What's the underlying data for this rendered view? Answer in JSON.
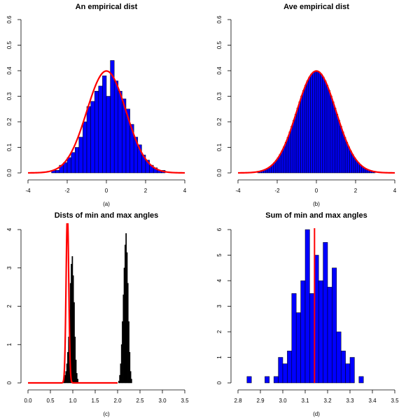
{
  "chart_data": [
    {
      "panel": "a",
      "type": "bar",
      "title": "An empirical dist",
      "subtitle": "(a)",
      "xlim": [
        -4,
        4
      ],
      "ylim": [
        0,
        0.6
      ],
      "xticks": [
        "-4",
        "-2",
        "0",
        "2",
        "4"
      ],
      "yticks": [
        "0.0",
        "0.1",
        "0.2",
        "0.3",
        "0.4",
        "0.5",
        "0.6"
      ],
      "bar_color": "#0000ff",
      "bin_width": 0.2,
      "bins_start": [
        -2.8,
        -2.6,
        -2.4,
        -2.2,
        -2.0,
        -1.8,
        -1.6,
        -1.4,
        -1.2,
        -1.0,
        -0.8,
        -0.6,
        -0.4,
        -0.2,
        0.0,
        0.2,
        0.4,
        0.6,
        0.8,
        1.0,
        1.2,
        1.4,
        1.6,
        1.8,
        2.0,
        2.2,
        2.4,
        2.6,
        2.8
      ],
      "values": [
        0.01,
        0.01,
        0.03,
        0.04,
        0.06,
        0.08,
        0.1,
        0.14,
        0.2,
        0.26,
        0.28,
        0.32,
        0.34,
        0.38,
        0.3,
        0.44,
        0.36,
        0.32,
        0.29,
        0.25,
        0.19,
        0.14,
        0.11,
        0.07,
        0.05,
        0.03,
        0.02,
        0.01,
        0.01
      ],
      "curve": {
        "type": "normal-density",
        "mean": 0,
        "sd": 1,
        "color": "#ff0000"
      }
    },
    {
      "panel": "b",
      "type": "bar",
      "title": "Ave empirical dist",
      "subtitle": "(b)",
      "xlim": [
        -4,
        4
      ],
      "ylim": [
        0,
        0.6
      ],
      "xticks": [
        "-4",
        "-2",
        "0",
        "2",
        "4"
      ],
      "yticks": [
        "0.0",
        "0.1",
        "0.2",
        "0.3",
        "0.4",
        "0.5",
        "0.6"
      ],
      "bar_color": "#0000ff",
      "bin_width": 0.1,
      "range": [
        -3.0,
        3.0
      ],
      "bars_follow": "normal-density",
      "curve": {
        "type": "normal-density",
        "mean": 0,
        "sd": 1,
        "color": "#ff0000"
      }
    },
    {
      "panel": "c",
      "type": "bar",
      "title": "Dists of min and max angles",
      "subtitle": "(c)",
      "xlim": [
        0,
        3.5
      ],
      "ylim": [
        0,
        4
      ],
      "xticks": [
        "0.0",
        "0.5",
        "1.0",
        "1.5",
        "2.0",
        "2.5",
        "3.0",
        "3.5"
      ],
      "yticks": [
        "0",
        "1",
        "2",
        "3",
        "4"
      ],
      "bar_color": "#000000",
      "bin_width": 0.02,
      "groups": [
        {
          "name": "min",
          "bins_start": [
            0.78,
            0.8,
            0.82,
            0.84,
            0.86,
            0.88,
            0.9,
            0.92,
            0.94,
            0.96,
            0.98,
            1.0,
            1.02,
            1.04,
            1.06,
            1.08,
            1.1
          ],
          "values": [
            0.05,
            0.15,
            0.2,
            0.3,
            0.5,
            0.8,
            1.2,
            1.9,
            2.6,
            3.1,
            3.3,
            2.8,
            2.1,
            1.2,
            0.6,
            0.25,
            0.1
          ]
        },
        {
          "name": "max",
          "bins_start": [
            2.02,
            2.04,
            2.06,
            2.08,
            2.1,
            2.12,
            2.14,
            2.16,
            2.18,
            2.2,
            2.22,
            2.24,
            2.26,
            2.28,
            2.3
          ],
          "values": [
            0.05,
            0.2,
            0.5,
            1.0,
            1.6,
            2.3,
            3.0,
            3.6,
            3.9,
            3.4,
            2.6,
            1.6,
            0.8,
            0.3,
            0.1
          ]
        }
      ],
      "curve": {
        "type": "sharp-peak",
        "peak_x": 0.88,
        "peak_y": 4.4,
        "color": "#ff0000"
      }
    },
    {
      "panel": "d",
      "type": "bar",
      "title": "Sum of min and max angles",
      "subtitle": "(d)",
      "xlim": [
        2.8,
        3.5
      ],
      "ylim": [
        0,
        6
      ],
      "xticks": [
        "2.8",
        "2.9",
        "3.0",
        "3.1",
        "3.2",
        "3.3",
        "3.4",
        "3.5"
      ],
      "yticks": [
        "0",
        "1",
        "2",
        "3",
        "4",
        "5",
        "6"
      ],
      "bar_color": "#0000ff",
      "bin_width": 0.02,
      "bins_start": [
        2.84,
        2.86,
        2.88,
        2.9,
        2.92,
        2.94,
        2.96,
        2.98,
        3.0,
        3.02,
        3.04,
        3.06,
        3.08,
        3.1,
        3.12,
        3.14,
        3.16,
        3.18,
        3.2,
        3.22,
        3.24,
        3.26,
        3.28,
        3.3,
        3.32,
        3.34
      ],
      "values": [
        0.25,
        0.0,
        0.0,
        0.0,
        0.25,
        0.0,
        0.25,
        1.0,
        0.75,
        1.25,
        3.5,
        2.75,
        4.0,
        6.0,
        3.5,
        5.0,
        4.0,
        5.5,
        3.75,
        4.5,
        2.0,
        1.25,
        0.75,
        1.0,
        0.0,
        0.25
      ],
      "vline": {
        "x": 3.1416,
        "color": "#ff0000"
      }
    }
  ]
}
